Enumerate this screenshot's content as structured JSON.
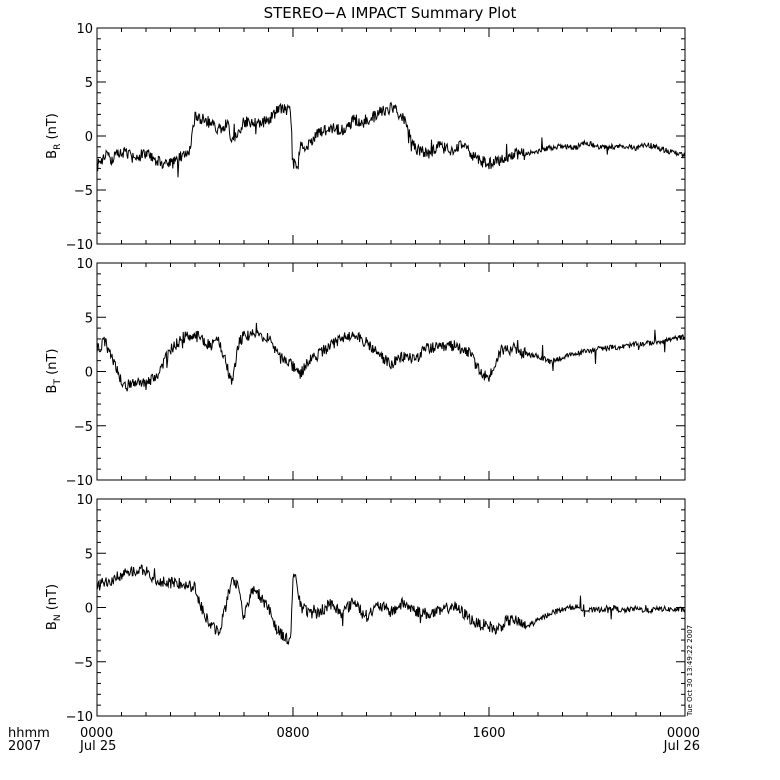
{
  "title": "STEREO−A IMPACT Summary Plot",
  "timestamp": "Tue Oct 30 13:49:22 2007",
  "x_axis": {
    "row_label_1": "hhmm",
    "row_label_2": "2007",
    "ticks": [
      {
        "hour": 0,
        "line1": "0000",
        "line2": "Jul 25"
      },
      {
        "hour": 8,
        "line1": "0800",
        "line2": ""
      },
      {
        "hour": 16,
        "line1": "1600",
        "line2": ""
      },
      {
        "hour": 24,
        "line1": "0000",
        "line2": "Jul 26"
      }
    ]
  },
  "panels": [
    {
      "label_main": "B",
      "label_sub": "R",
      "label_unit": " (nT)"
    },
    {
      "label_main": "B",
      "label_sub": "T",
      "label_unit": " (nT)"
    },
    {
      "label_main": "B",
      "label_sub": "N",
      "label_unit": " (nT)"
    }
  ],
  "chart_data": [
    {
      "type": "line",
      "title": "STEREO−A IMPACT Summary Plot",
      "ylabel": "BR (nT)",
      "xlim": [
        0,
        24
      ],
      "ylim": [
        -10,
        10
      ],
      "yticks": [
        -10,
        -5,
        0,
        5,
        10
      ],
      "x": [
        0,
        0.3,
        0.6,
        1,
        1.5,
        2,
        2.5,
        3,
        3.3,
        3.6,
        3.8,
        4,
        4.5,
        5,
        5.3,
        5.5,
        5.8,
        6,
        6.5,
        7,
        7.5,
        7.9,
        8,
        8.2,
        8.3,
        8.6,
        9,
        9.5,
        10,
        10.5,
        11,
        11.5,
        12,
        12.5,
        13,
        13.5,
        14,
        14.5,
        15,
        15.5,
        16,
        16.5,
        17,
        17.5,
        18,
        18.5,
        19,
        19.5,
        20,
        20.5,
        21,
        21.5,
        22,
        22.5,
        23,
        23.5,
        24
      ],
      "values": [
        -2.8,
        -1.8,
        -2.2,
        -1.5,
        -2,
        -1.6,
        -2.4,
        -2.6,
        -2.2,
        -1.5,
        -1.2,
        1.8,
        1.4,
        0.6,
        1.2,
        -0.2,
        0.3,
        1.3,
        1.1,
        1.5,
        2.6,
        2.4,
        -2.5,
        -2.8,
        -1,
        -0.8,
        0.2,
        0.8,
        0.5,
        1.5,
        1.2,
        2.2,
        2.6,
        1.8,
        -1.2,
        -1.6,
        -1,
        -1.3,
        -0.8,
        -2.2,
        -2.6,
        -2.2,
        -1.6,
        -1.7,
        -1.4,
        -1.1,
        -0.9,
        -1.1,
        -0.6,
        -1.1,
        -1,
        -0.9,
        -1.1,
        -0.8,
        -1.2,
        -1.5,
        -1.8
      ]
    },
    {
      "type": "line",
      "ylabel": "BT (nT)",
      "xlim": [
        0,
        24
      ],
      "ylim": [
        -10,
        10
      ],
      "yticks": [
        -10,
        -5,
        0,
        5,
        10
      ],
      "x": [
        0,
        0.3,
        0.6,
        0.9,
        1.2,
        1.5,
        2,
        2.5,
        3,
        3.5,
        4,
        4.3,
        4.6,
        5,
        5.3,
        5.5,
        5.8,
        6,
        6.5,
        7,
        7.5,
        8,
        8.3,
        8.6,
        9,
        9.5,
        10,
        10.5,
        11,
        11.5,
        12,
        12.5,
        13,
        13.5,
        14,
        14.5,
        15,
        15.3,
        15.6,
        16,
        16.5,
        17,
        17.5,
        18,
        18.5,
        19,
        19.5,
        20,
        20.5,
        21,
        21.5,
        22,
        22.5,
        23,
        23.5,
        24
      ],
      "values": [
        2,
        2.8,
        1.5,
        -0.5,
        -1.4,
        -0.8,
        -1.2,
        -0.2,
        2,
        3.1,
        3.3,
        3,
        2.4,
        2.8,
        0.5,
        -1.2,
        2.8,
        3.3,
        3.4,
        3.2,
        1.2,
        0.5,
        -0.2,
        0.8,
        1.5,
        2.3,
        3,
        3.6,
        2.6,
        1.6,
        0.6,
        1.4,
        1.2,
        2.2,
        2.1,
        2.4,
        2.1,
        1.4,
        0,
        -0.6,
        2,
        2.1,
        1.6,
        1.4,
        0.9,
        1.3,
        1.6,
        1.9,
        2.1,
        2.2,
        2.3,
        2.5,
        2.6,
        2.8,
        3,
        3.2
      ]
    },
    {
      "type": "line",
      "ylabel": "BN (nT)",
      "xlim": [
        0,
        24
      ],
      "ylim": [
        -10,
        10
      ],
      "yticks": [
        -10,
        -5,
        0,
        5,
        10
      ],
      "x": [
        0,
        0.5,
        1,
        1.5,
        2,
        2.5,
        3,
        3.5,
        4,
        4.3,
        4.6,
        5,
        5.3,
        5.5,
        5.8,
        6,
        6.3,
        6.6,
        7,
        7.3,
        7.6,
        7.9,
        8,
        8.1,
        8.3,
        8.5,
        9,
        9.5,
        10,
        10.5,
        11,
        11.5,
        12,
        12.5,
        13,
        13.5,
        14,
        14.5,
        15,
        15.5,
        16,
        16.3,
        16.7,
        17,
        17.5,
        18,
        18.5,
        19,
        19.5,
        20,
        20.5,
        21,
        21.5,
        22,
        22.5,
        23,
        23.5,
        24
      ],
      "values": [
        2,
        2.5,
        3,
        3.5,
        3.3,
        2.4,
        2.2,
        2.3,
        1.8,
        -0.2,
        -1.6,
        -2.3,
        0.6,
        2.6,
        1.8,
        -1,
        1.6,
        1.2,
        0,
        -1.8,
        -2.6,
        -3.2,
        2.9,
        3,
        0.2,
        -0.3,
        -0.6,
        0.4,
        -0.5,
        0.6,
        -0.8,
        0.2,
        -0.4,
        0.4,
        -0.3,
        -0.6,
        -0.4,
        0.2,
        -0.6,
        -1.5,
        -1.7,
        -2.1,
        -1.3,
        -1.1,
        -1.8,
        -1.2,
        -0.5,
        -0.2,
        0.1,
        -0.3,
        -0.2,
        0,
        -0.3,
        -0.1,
        -0.3,
        -0.1,
        -0.2,
        -0.2
      ]
    }
  ]
}
